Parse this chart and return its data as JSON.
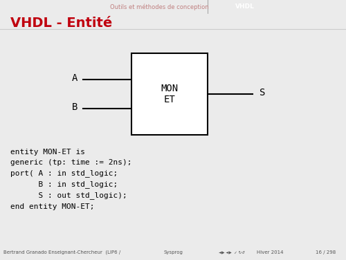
{
  "bg_color": "#ebebeb",
  "header_bar_color": "#9b1c1c",
  "header_text1": "Outils et méthodes de conception",
  "header_text2": "VHDL",
  "header_text1_color": "#c08080",
  "header_text2_color": "#ffffff",
  "title_text": "VHDL - Entité",
  "title_color": "#c0000e",
  "title_fontsize": 14,
  "box_label": "MON\nET",
  "input_A_label": "A",
  "input_B_label": "B",
  "output_S_label": "S",
  "code_lines": [
    "entity MON-ET is",
    "generic (tp: time := 2ns);",
    "port( A : in std_logic;",
    "      B : in std_logic;",
    "      S : out std_logic);",
    "end entity MON-ET;"
  ],
  "footer_left": "Bertrand Granado Enseignant-Chercheur  (LIP6 /",
  "footer_center": "Sysprog",
  "footer_right": "Hiver 2014",
  "footer_page": "16 / 298",
  "footer_bg": "#d4d4d4",
  "footer_text_color": "#555555"
}
